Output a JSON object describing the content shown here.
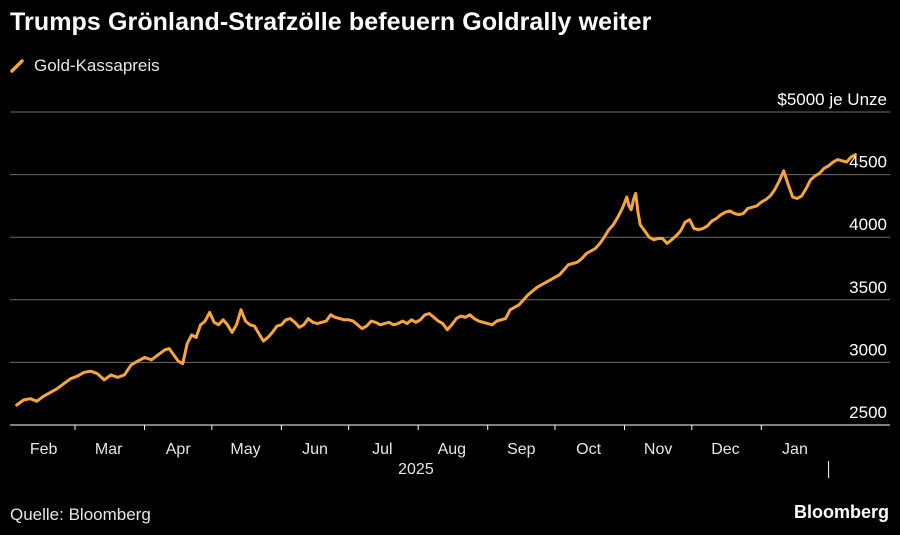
{
  "title": "Trumps Grönland-Strafzölle befeuern Goldrally weiter",
  "legend_label": "Gold-Kassapreis",
  "source": "Quelle: Bloomberg",
  "brand": "Bloomberg",
  "colors": {
    "line": "#f5a63a",
    "grid": "#6b6b6b",
    "axis": "#ffffff",
    "background": "#000000"
  },
  "chart_data": {
    "type": "line",
    "title": "Trumps Grönland-Strafzölle befeuern Goldrally weiter",
    "unit_label": "$5000 je Unze",
    "y_ticks": [
      2500,
      3000,
      3500,
      4000,
      4500,
      5000
    ],
    "y_tick_labels": [
      "2500",
      "3000",
      "3500",
      "4000",
      "4500",
      "$5000 je Unze"
    ],
    "ylim": [
      2500,
      5000
    ],
    "x_range_days": [
      0,
      379
    ],
    "x_month_labels": [
      "Feb",
      "Mar",
      "Apr",
      "May",
      "Jun",
      "Jul",
      "Aug",
      "Sep",
      "Oct",
      "Nov",
      "Dec",
      "Jan"
    ],
    "x_month_label_days": [
      15,
      44,
      75,
      105,
      136,
      166,
      197,
      228,
      258,
      289,
      319,
      350
    ],
    "year_label": "2025",
    "year_label_day": 181,
    "year_divider_day": 365,
    "series": [
      {
        "name": "Gold-Kassapreis",
        "points": [
          [
            3,
            2660
          ],
          [
            6,
            2700
          ],
          [
            9,
            2710
          ],
          [
            12,
            2690
          ],
          [
            15,
            2730
          ],
          [
            18,
            2760
          ],
          [
            21,
            2790
          ],
          [
            24,
            2830
          ],
          [
            27,
            2870
          ],
          [
            30,
            2890
          ],
          [
            33,
            2920
          ],
          [
            36,
            2930
          ],
          [
            39,
            2910
          ],
          [
            42,
            2860
          ],
          [
            45,
            2900
          ],
          [
            48,
            2880
          ],
          [
            51,
            2900
          ],
          [
            54,
            2980
          ],
          [
            57,
            3010
          ],
          [
            60,
            3040
          ],
          [
            63,
            3020
          ],
          [
            66,
            3060
          ],
          [
            69,
            3100
          ],
          [
            71,
            3110
          ],
          [
            73,
            3060
          ],
          [
            75,
            3010
          ],
          [
            77,
            2990
          ],
          [
            79,
            3150
          ],
          [
            81,
            3220
          ],
          [
            83,
            3200
          ],
          [
            85,
            3300
          ],
          [
            87,
            3330
          ],
          [
            89,
            3400
          ],
          [
            91,
            3320
          ],
          [
            93,
            3300
          ],
          [
            95,
            3340
          ],
          [
            97,
            3300
          ],
          [
            99,
            3240
          ],
          [
            101,
            3300
          ],
          [
            103,
            3420
          ],
          [
            105,
            3330
          ],
          [
            107,
            3300
          ],
          [
            109,
            3290
          ],
          [
            111,
            3230
          ],
          [
            113,
            3170
          ],
          [
            115,
            3200
          ],
          [
            117,
            3240
          ],
          [
            119,
            3290
          ],
          [
            121,
            3300
          ],
          [
            123,
            3340
          ],
          [
            125,
            3350
          ],
          [
            127,
            3320
          ],
          [
            129,
            3280
          ],
          [
            131,
            3300
          ],
          [
            133,
            3350
          ],
          [
            135,
            3320
          ],
          [
            137,
            3310
          ],
          [
            139,
            3320
          ],
          [
            141,
            3330
          ],
          [
            143,
            3380
          ],
          [
            145,
            3360
          ],
          [
            147,
            3350
          ],
          [
            149,
            3340
          ],
          [
            151,
            3340
          ],
          [
            153,
            3330
          ],
          [
            155,
            3300
          ],
          [
            157,
            3270
          ],
          [
            159,
            3290
          ],
          [
            161,
            3330
          ],
          [
            163,
            3320
          ],
          [
            165,
            3300
          ],
          [
            167,
            3310
          ],
          [
            169,
            3320
          ],
          [
            171,
            3300
          ],
          [
            173,
            3310
          ],
          [
            175,
            3330
          ],
          [
            177,
            3310
          ],
          [
            179,
            3340
          ],
          [
            181,
            3320
          ],
          [
            183,
            3340
          ],
          [
            185,
            3380
          ],
          [
            187,
            3390
          ],
          [
            189,
            3360
          ],
          [
            191,
            3330
          ],
          [
            193,
            3310
          ],
          [
            195,
            3260
          ],
          [
            197,
            3300
          ],
          [
            199,
            3350
          ],
          [
            201,
            3370
          ],
          [
            203,
            3360
          ],
          [
            205,
            3380
          ],
          [
            207,
            3350
          ],
          [
            209,
            3330
          ],
          [
            211,
            3320
          ],
          [
            213,
            3310
          ],
          [
            215,
            3300
          ],
          [
            217,
            3330
          ],
          [
            219,
            3340
          ],
          [
            221,
            3350
          ],
          [
            223,
            3420
          ],
          [
            225,
            3440
          ],
          [
            227,
            3460
          ],
          [
            229,
            3500
          ],
          [
            231,
            3540
          ],
          [
            233,
            3570
          ],
          [
            235,
            3600
          ],
          [
            237,
            3620
          ],
          [
            239,
            3640
          ],
          [
            241,
            3660
          ],
          [
            243,
            3680
          ],
          [
            245,
            3700
          ],
          [
            247,
            3740
          ],
          [
            249,
            3780
          ],
          [
            251,
            3790
          ],
          [
            253,
            3800
          ],
          [
            255,
            3830
          ],
          [
            257,
            3870
          ],
          [
            259,
            3890
          ],
          [
            261,
            3910
          ],
          [
            263,
            3950
          ],
          [
            265,
            4000
          ],
          [
            267,
            4060
          ],
          [
            269,
            4100
          ],
          [
            271,
            4160
          ],
          [
            273,
            4230
          ],
          [
            275,
            4320
          ],
          [
            276,
            4250
          ],
          [
            277,
            4220
          ],
          [
            278,
            4300
          ],
          [
            279,
            4350
          ],
          [
            280,
            4200
          ],
          [
            281,
            4100
          ],
          [
            283,
            4050
          ],
          [
            285,
            4000
          ],
          [
            287,
            3980
          ],
          [
            289,
            3990
          ],
          [
            291,
            3990
          ],
          [
            293,
            3950
          ],
          [
            295,
            3980
          ],
          [
            297,
            4010
          ],
          [
            299,
            4050
          ],
          [
            301,
            4120
          ],
          [
            303,
            4140
          ],
          [
            305,
            4070
          ],
          [
            307,
            4060
          ],
          [
            309,
            4070
          ],
          [
            311,
            4090
          ],
          [
            313,
            4130
          ],
          [
            315,
            4150
          ],
          [
            317,
            4180
          ],
          [
            319,
            4200
          ],
          [
            321,
            4210
          ],
          [
            323,
            4190
          ],
          [
            325,
            4180
          ],
          [
            327,
            4190
          ],
          [
            329,
            4230
          ],
          [
            331,
            4240
          ],
          [
            333,
            4250
          ],
          [
            335,
            4280
          ],
          [
            337,
            4300
          ],
          [
            339,
            4330
          ],
          [
            341,
            4380
          ],
          [
            343,
            4450
          ],
          [
            345,
            4530
          ],
          [
            347,
            4420
          ],
          [
            349,
            4320
          ],
          [
            351,
            4310
          ],
          [
            353,
            4330
          ],
          [
            355,
            4390
          ],
          [
            357,
            4460
          ],
          [
            359,
            4490
          ],
          [
            361,
            4510
          ],
          [
            363,
            4550
          ],
          [
            365,
            4570
          ],
          [
            367,
            4600
          ],
          [
            369,
            4620
          ],
          [
            371,
            4610
          ],
          [
            373,
            4600
          ],
          [
            375,
            4640
          ],
          [
            377,
            4660
          ]
        ]
      }
    ]
  }
}
